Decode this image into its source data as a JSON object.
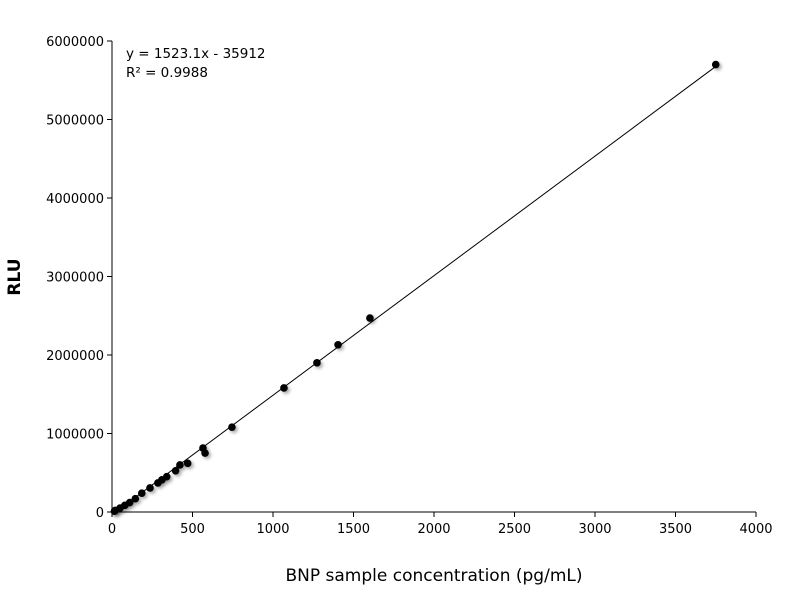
{
  "chart_data": {
    "type": "scatter",
    "xlabel": "BNP sample concentration (pg/mL)",
    "ylabel": "RLU",
    "xlim": [
      0,
      4000
    ],
    "ylim": [
      0,
      6000000
    ],
    "xticks": [
      "0",
      "500",
      "1000",
      "1500",
      "2000",
      "2500",
      "3000",
      "3500",
      "4000"
    ],
    "yticks": [
      "0",
      "1000000",
      "2000000",
      "3000000",
      "4000000",
      "5000000",
      "6000000"
    ],
    "grid": false,
    "trendline": {
      "type": "linear",
      "slope": 1523.1,
      "intercept": -35912,
      "equation": "y = 1523.1x - 35912",
      "r2_label": "R² = 0.9988"
    },
    "point_color": "#000000",
    "points": [
      [
        15,
        10000
      ],
      [
        20,
        20000
      ],
      [
        50,
        50000
      ],
      [
        80,
        85000
      ],
      [
        110,
        120000
      ],
      [
        145,
        170000
      ],
      [
        185,
        240000
      ],
      [
        236,
        306000
      ],
      [
        285,
        370000
      ],
      [
        310,
        410000
      ],
      [
        340,
        450000
      ],
      [
        395,
        525000
      ],
      [
        422,
        600000
      ],
      [
        470,
        620000
      ],
      [
        565,
        815000
      ],
      [
        578,
        750000
      ],
      [
        745,
        1080000
      ],
      [
        1068,
        1580000
      ],
      [
        1273,
        1900000
      ],
      [
        1404,
        2130000
      ],
      [
        1602,
        2470000
      ],
      [
        3750,
        5700000
      ]
    ]
  }
}
